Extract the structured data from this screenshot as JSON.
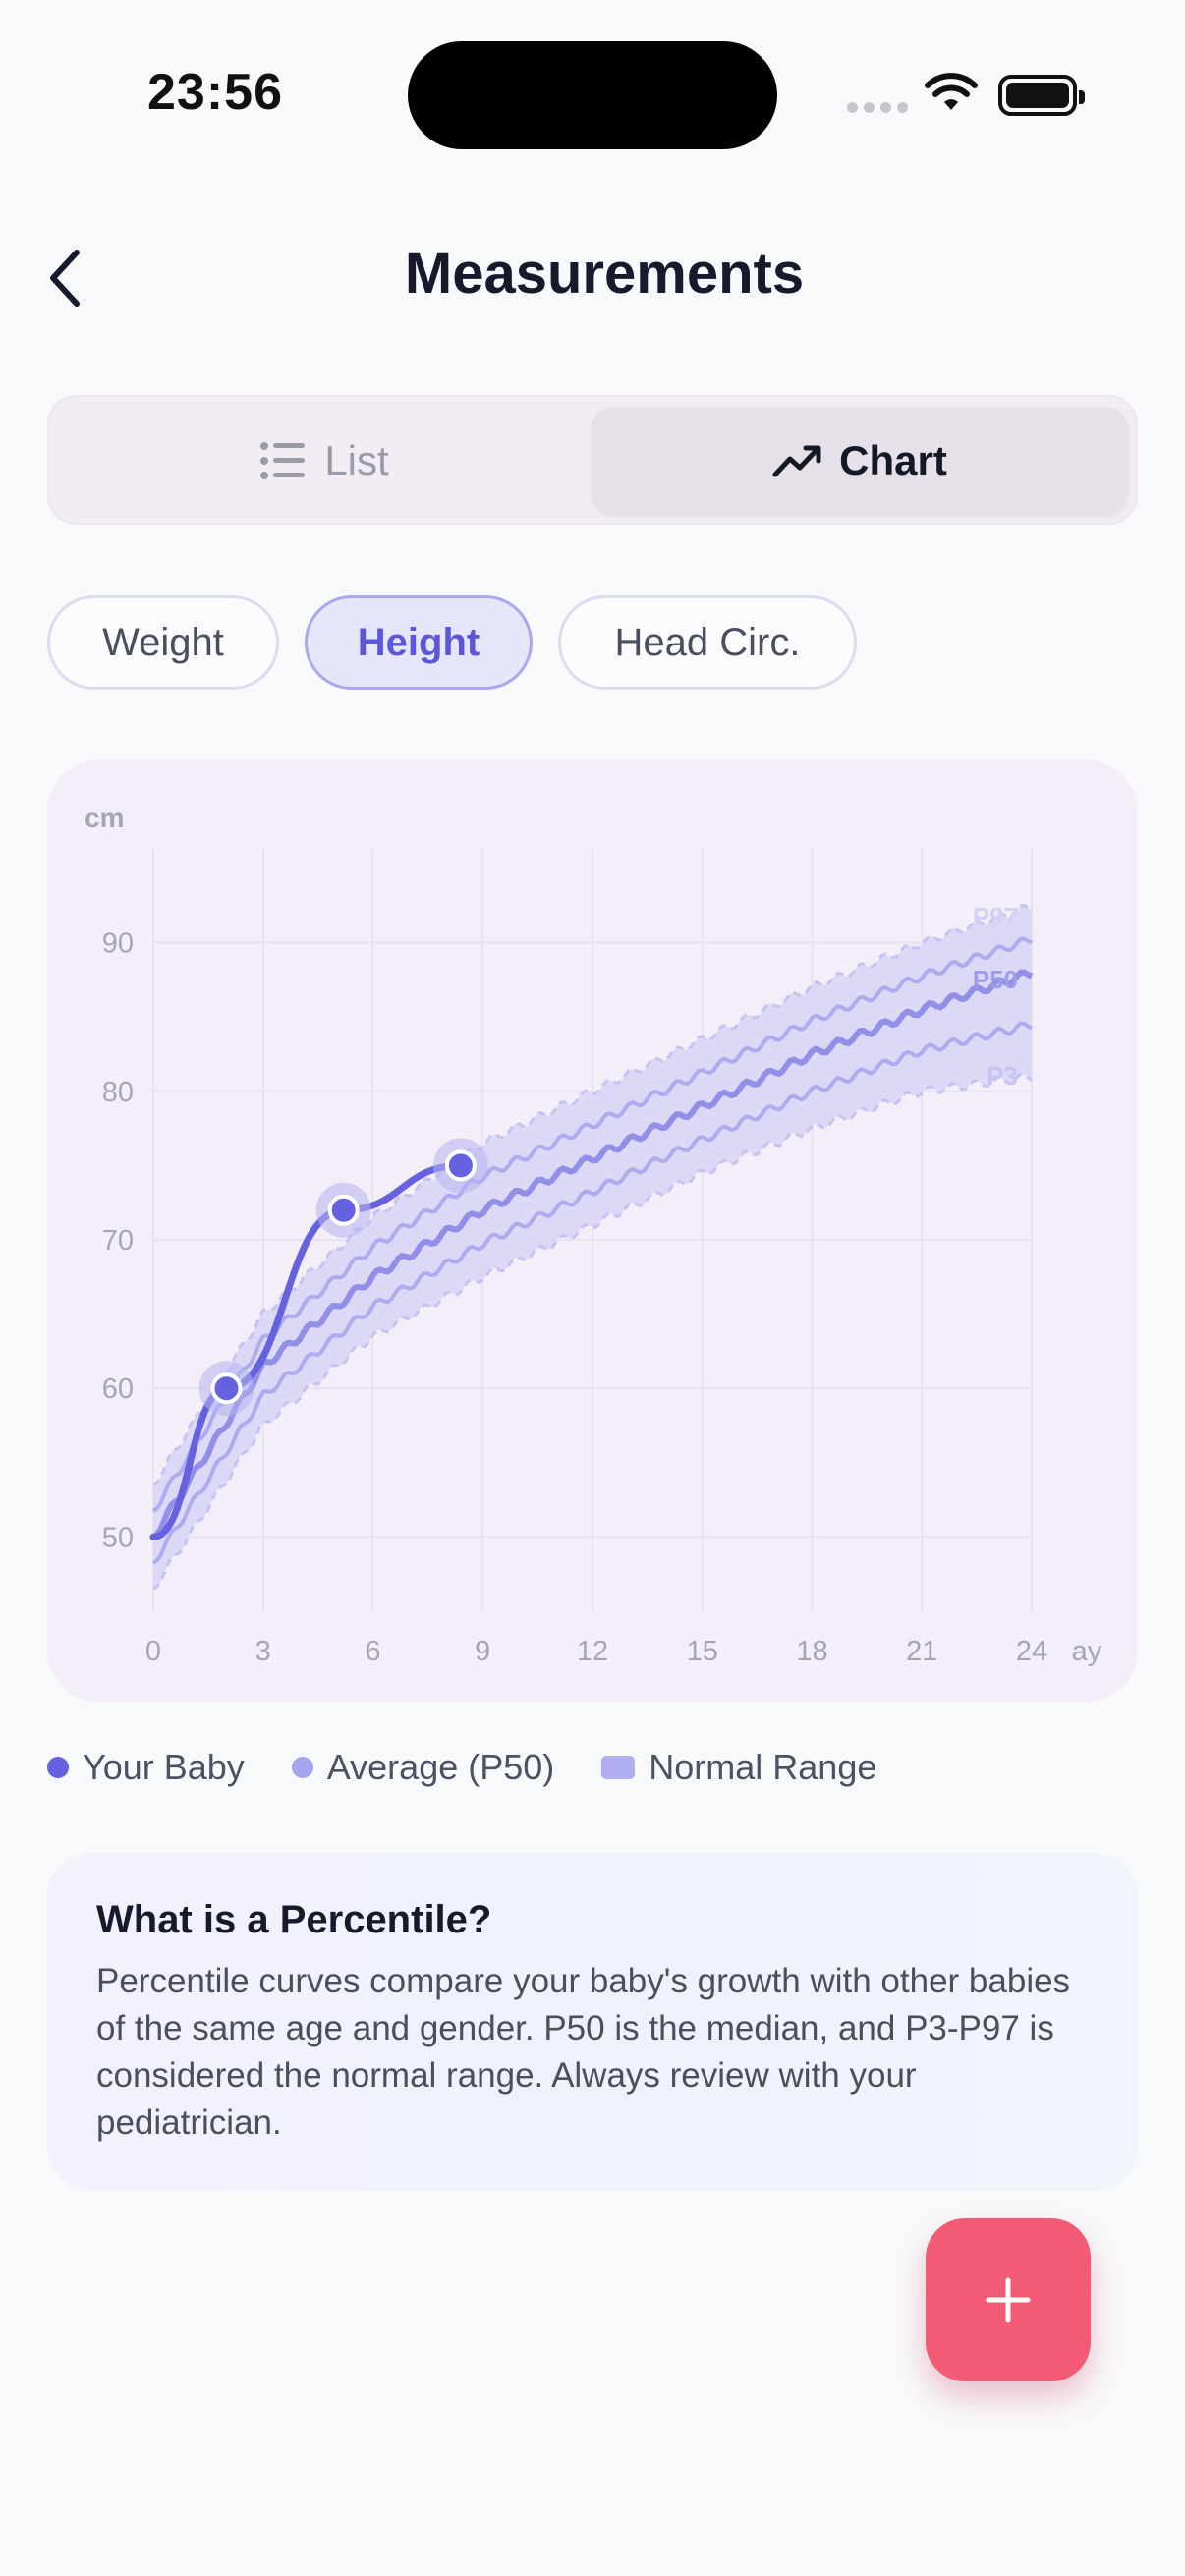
{
  "status_bar": {
    "time": "23:56"
  },
  "header": {
    "title": "Measurements",
    "back_icon": "chevron-left-icon"
  },
  "view_toggle": {
    "options": [
      {
        "label": "List",
        "icon": "list-icon",
        "selected": false
      },
      {
        "label": "Chart",
        "icon": "trend-line-icon",
        "selected": true
      }
    ]
  },
  "filters": [
    {
      "label": "Weight",
      "selected": false
    },
    {
      "label": "Height",
      "selected": true
    },
    {
      "label": "Head Circ.",
      "selected": false
    }
  ],
  "colors": {
    "accent": "#5c57d9",
    "baby_line": "#6562e0",
    "p50_line": "#a7a5ef",
    "band_fill": "#dcd9f7",
    "fab": "#f25a76"
  },
  "chart_data": {
    "type": "line",
    "ylabel": "cm",
    "xlabel": "ay",
    "xlim": [
      0,
      24
    ],
    "ylim": [
      45,
      95
    ],
    "x_ticks": [
      0,
      3,
      6,
      9,
      12,
      15,
      18,
      21,
      24
    ],
    "y_ticks": [
      50,
      60,
      70,
      80,
      90
    ],
    "grid": true,
    "curve_labels": [
      "P97",
      "P50",
      "P3"
    ],
    "series": [
      {
        "name": "Your Baby",
        "x": [
          2,
          5.2,
          8.4
        ],
        "values": [
          60,
          72,
          75
        ]
      },
      {
        "name": "Average (P50)",
        "x": [
          0,
          3,
          6,
          9,
          12,
          15,
          18,
          21,
          24
        ],
        "values": [
          50,
          61.5,
          67.5,
          72,
          75.5,
          79,
          82.5,
          85.5,
          88
        ]
      },
      {
        "name": "P97",
        "x": [
          0,
          3,
          6,
          9,
          12,
          15,
          18,
          21,
          24
        ],
        "values": [
          53.5,
          65,
          71.5,
          76.5,
          80,
          83.5,
          87,
          90,
          92.5
        ]
      },
      {
        "name": "P3",
        "x": [
          0,
          3,
          6,
          9,
          12,
          15,
          18,
          21,
          24
        ],
        "values": [
          46.5,
          57.5,
          63.5,
          67.5,
          71,
          74.5,
          77.5,
          80,
          81
        ]
      }
    ]
  },
  "legend": [
    {
      "label": "Your Baby",
      "color": "#6562e0",
      "shape": "dot"
    },
    {
      "label": "Average (P50)",
      "color": "#a7a5ef",
      "shape": "dot"
    },
    {
      "label": "Normal Range",
      "color": "#b1aff2",
      "shape": "square"
    }
  ],
  "info": {
    "title": "What is a Percentile?",
    "body": "Percentile curves compare your baby's growth with other babies of the same age and gender. P50 is the median, and P3-P97 is considered the normal range. Always review with your pediatrician."
  },
  "fab": {
    "icon": "plus-icon"
  }
}
